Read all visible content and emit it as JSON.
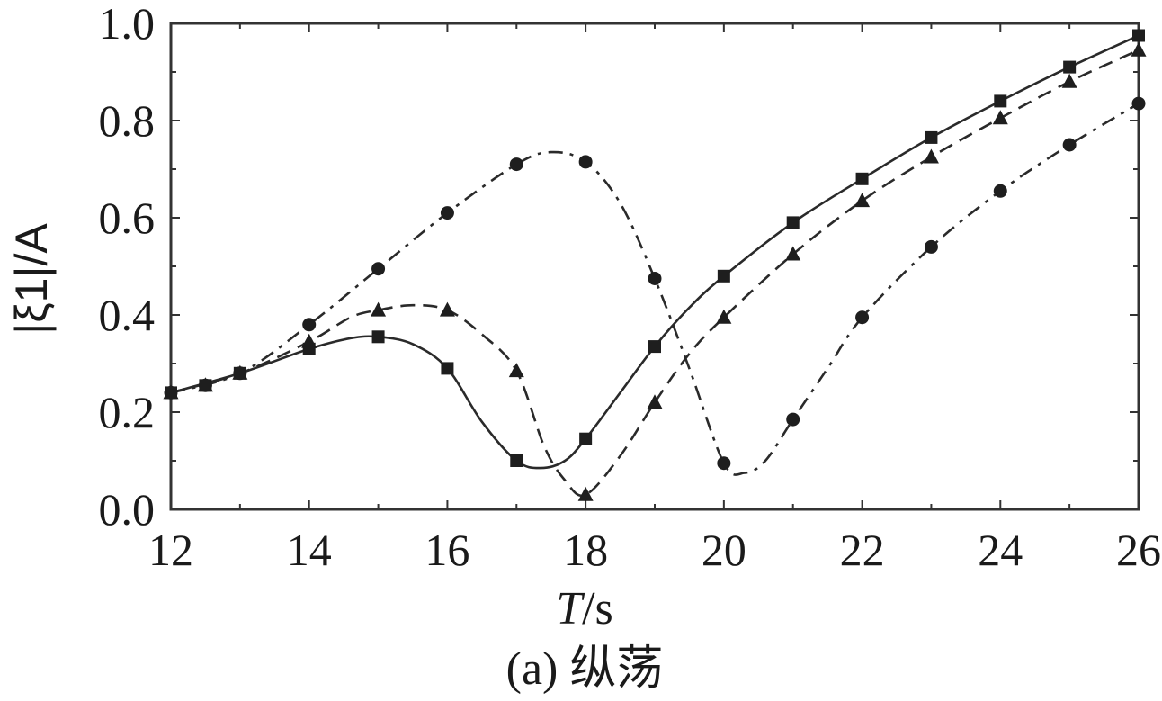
{
  "chart_data": {
    "type": "line",
    "caption": "(a) 纵荡",
    "xlabel_italic": "T",
    "xlabel_unit": "/s",
    "ylabel": "|ξ1|/A",
    "xlim": [
      12,
      26
    ],
    "ylim": [
      0.0,
      1.0
    ],
    "x_ticks": [
      "12",
      "14",
      "16",
      "18",
      "20",
      "22",
      "24",
      "26"
    ],
    "y_ticks": [
      "0.0",
      "0.2",
      "0.4",
      "0.6",
      "0.8",
      "1.0"
    ],
    "grid": false,
    "series": [
      {
        "marker": "square",
        "line_style": "solid",
        "points": [
          [
            12,
            0.24
          ],
          [
            12.5,
            0.255
          ],
          [
            13,
            0.28
          ],
          [
            14,
            0.33
          ],
          [
            15,
            0.355
          ],
          [
            16,
            0.29
          ],
          [
            17,
            0.1
          ],
          [
            18,
            0.145
          ],
          [
            19,
            0.335
          ],
          [
            20,
            0.48
          ],
          [
            21,
            0.59
          ],
          [
            22,
            0.68
          ],
          [
            23,
            0.765
          ],
          [
            24,
            0.84
          ],
          [
            25,
            0.91
          ],
          [
            26,
            0.975
          ]
        ],
        "curve": [
          [
            12,
            0.24
          ],
          [
            13,
            0.28
          ],
          [
            14,
            0.33
          ],
          [
            14.6,
            0.352
          ],
          [
            15,
            0.355
          ],
          [
            15.5,
            0.34
          ],
          [
            16,
            0.29
          ],
          [
            16.5,
            0.18
          ],
          [
            17,
            0.1
          ],
          [
            17.35,
            0.085
          ],
          [
            17.7,
            0.1
          ],
          [
            18,
            0.145
          ],
          [
            18.5,
            0.24
          ],
          [
            19,
            0.335
          ],
          [
            19.5,
            0.415
          ],
          [
            20,
            0.48
          ],
          [
            21,
            0.59
          ],
          [
            22,
            0.68
          ],
          [
            23,
            0.765
          ],
          [
            24,
            0.84
          ],
          [
            25,
            0.91
          ],
          [
            26,
            0.975
          ]
        ]
      },
      {
        "marker": "triangle",
        "line_style": "dashed",
        "points": [
          [
            12,
            0.24
          ],
          [
            12.5,
            0.255
          ],
          [
            13,
            0.28
          ],
          [
            14,
            0.345
          ],
          [
            15,
            0.41
          ],
          [
            16,
            0.41
          ],
          [
            17,
            0.285
          ],
          [
            18,
            0.03
          ],
          [
            19,
            0.22
          ],
          [
            20,
            0.395
          ],
          [
            21,
            0.525
          ],
          [
            22,
            0.635
          ],
          [
            23,
            0.725
          ],
          [
            24,
            0.805
          ],
          [
            25,
            0.88
          ],
          [
            26,
            0.945
          ]
        ],
        "curve": [
          [
            12,
            0.24
          ],
          [
            13,
            0.28
          ],
          [
            14,
            0.345
          ],
          [
            14.6,
            0.395
          ],
          [
            15,
            0.41
          ],
          [
            15.5,
            0.42
          ],
          [
            16,
            0.41
          ],
          [
            16.5,
            0.36
          ],
          [
            17,
            0.285
          ],
          [
            17.4,
            0.13
          ],
          [
            17.7,
            0.06
          ],
          [
            18,
            0.03
          ],
          [
            18.5,
            0.11
          ],
          [
            19,
            0.22
          ],
          [
            19.5,
            0.32
          ],
          [
            20,
            0.395
          ],
          [
            21,
            0.525
          ],
          [
            22,
            0.635
          ],
          [
            23,
            0.725
          ],
          [
            24,
            0.805
          ],
          [
            25,
            0.88
          ],
          [
            26,
            0.945
          ]
        ]
      },
      {
        "marker": "circle",
        "line_style": "dashdot",
        "points": [
          [
            12,
            0.24
          ],
          [
            12.5,
            0.255
          ],
          [
            13,
            0.28
          ],
          [
            14,
            0.38
          ],
          [
            15,
            0.495
          ],
          [
            16,
            0.61
          ],
          [
            17,
            0.71
          ],
          [
            18,
            0.715
          ],
          [
            19,
            0.475
          ],
          [
            20,
            0.095
          ],
          [
            21,
            0.185
          ],
          [
            22,
            0.395
          ],
          [
            23,
            0.54
          ],
          [
            24,
            0.655
          ],
          [
            25,
            0.75
          ],
          [
            26,
            0.835
          ]
        ],
        "curve": [
          [
            12,
            0.24
          ],
          [
            13,
            0.28
          ],
          [
            14,
            0.38
          ],
          [
            15,
            0.495
          ],
          [
            16,
            0.61
          ],
          [
            17,
            0.71
          ],
          [
            17.5,
            0.735
          ],
          [
            18,
            0.715
          ],
          [
            18.5,
            0.63
          ],
          [
            19,
            0.475
          ],
          [
            19.5,
            0.29
          ],
          [
            20,
            0.095
          ],
          [
            20.3,
            0.075
          ],
          [
            20.6,
            0.1
          ],
          [
            21,
            0.185
          ],
          [
            21.5,
            0.29
          ],
          [
            22,
            0.395
          ],
          [
            23,
            0.54
          ],
          [
            24,
            0.655
          ],
          [
            25,
            0.75
          ],
          [
            26,
            0.835
          ]
        ]
      }
    ]
  }
}
